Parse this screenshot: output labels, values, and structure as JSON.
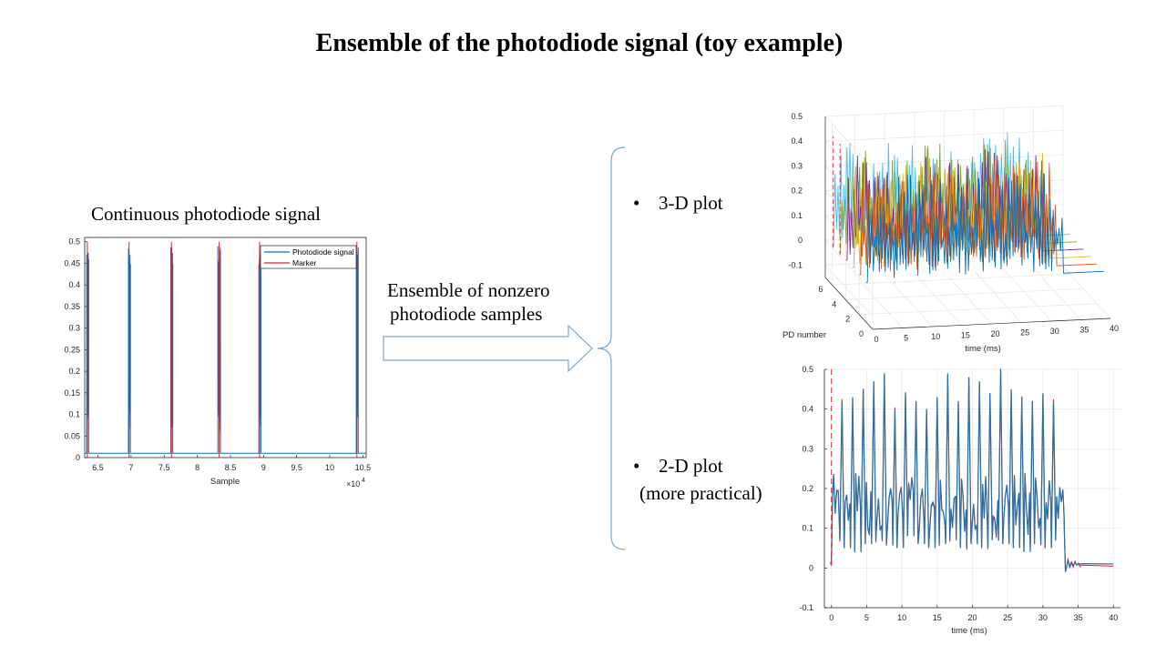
{
  "slide": {
    "title": "Ensemble of the photodiode signal (toy example)",
    "left_caption": "Continuous photodiode signal",
    "arrow_caption_line1": "Ensemble of nonzero",
    "arrow_caption_line2": "photodiode samples",
    "bullet_3d": "3-D plot",
    "bullet_2d_line1": "2-D plot",
    "bullet_2d_line2": "(more practical)",
    "bullet_symbol": "•",
    "colors": {
      "signal_blue": "#0072BD",
      "marker_red": "#E0232B",
      "arrow_outline": "#7BA7CF",
      "grid": "#E6E6E6"
    }
  },
  "chart_data": [
    {
      "type": "line",
      "name": "continuous-signal",
      "xlabel": "Sample",
      "x_exponent_label": "×10",
      "x_exponent": "4",
      "xlim": [
        6.3,
        10.55
      ],
      "ylim": [
        0,
        0.51
      ],
      "xticks": [
        "6.5",
        "7",
        "7.5",
        "8",
        "8.5",
        "9",
        "9.5",
        "10",
        "10.5"
      ],
      "xtick_values": [
        6.5,
        7,
        7.5,
        8,
        8.5,
        9,
        9.5,
        10,
        10.5
      ],
      "yticks": [
        "0",
        "0.05",
        "0.1",
        "0.15",
        "0.2",
        "0.25",
        "0.3",
        "0.35",
        "0.4",
        "0.45",
        "0.5"
      ],
      "ytick_values": [
        0,
        0.05,
        0.1,
        0.15,
        0.2,
        0.25,
        0.3,
        0.35,
        0.4,
        0.45,
        0.5
      ],
      "baseline": 0.01,
      "legend": [
        "Photodiode signal",
        "Marker"
      ],
      "legend_position": "top-right",
      "bursts": [
        {
          "start": 6.33,
          "end": 6.36,
          "peak": 0.495
        },
        {
          "start": 6.96,
          "end": 6.99,
          "peak": 0.495
        },
        {
          "start": 7.6,
          "end": 7.63,
          "peak": 0.49
        },
        {
          "start": 8.31,
          "end": 8.35,
          "peak": 0.49
        },
        {
          "start": 8.93,
          "end": 8.96,
          "peak": 0.485
        },
        {
          "start": 10.4,
          "end": 10.43,
          "peak": 0.495
        }
      ],
      "markers": [
        6.34,
        6.97,
        7.61,
        8.33,
        8.94,
        10.41
      ]
    },
    {
      "type": "line",
      "name": "ensemble-3d",
      "xlabel": "time (ms)",
      "ylabel": "PD number",
      "xlim": [
        0,
        40
      ],
      "ylim": [
        0,
        7
      ],
      "zlim": [
        -0.15,
        0.5
      ],
      "xticks": [
        "0",
        "5",
        "10",
        "15",
        "20",
        "25",
        "30",
        "35",
        "40"
      ],
      "xtick_values": [
        0,
        5,
        10,
        15,
        20,
        25,
        30,
        35,
        40
      ],
      "yticks": [
        "0",
        "2",
        "4",
        "6"
      ],
      "ytick_values": [
        0,
        2,
        4,
        6
      ],
      "zticks": [
        "-0.1",
        "0",
        "0.1",
        "0.2",
        "0.3",
        "0.4",
        "0.5"
      ],
      "ztick_values": [
        -0.1,
        0,
        0.1,
        0.2,
        0.3,
        0.4,
        0.5
      ],
      "series_colors": [
        "#0072BD",
        "#D95319",
        "#EDB120",
        "#7E2F8E",
        "#77AC30",
        "#4DBEEE"
      ],
      "pd_numbers": [
        1,
        2,
        3,
        4,
        5,
        6
      ],
      "signal_end_ms": 33
    },
    {
      "type": "line",
      "name": "ensemble-2d",
      "xlabel": "time (ms)",
      "xlim": [
        -1,
        41
      ],
      "ylim": [
        -0.1,
        0.5
      ],
      "xticks": [
        "0",
        "5",
        "10",
        "15",
        "20",
        "25",
        "30",
        "35",
        "40"
      ],
      "xtick_values": [
        0,
        5,
        10,
        15,
        20,
        25,
        30,
        35,
        40
      ],
      "yticks": [
        "-0.1",
        "0",
        "0.1",
        "0.2",
        "0.3",
        "0.4",
        "0.5"
      ],
      "ytick_values": [
        -0.1,
        0,
        0.1,
        0.2,
        0.3,
        0.4,
        0.5
      ],
      "marker_time_ms": 0,
      "signal_start_ms": 0,
      "signal_end_ms": 33,
      "tail_level": 0.01,
      "peak_times_ms": [
        1.5,
        3.0,
        4.5,
        6.0,
        7.5,
        9.0,
        10.5,
        12.0,
        13.5,
        15.0,
        16.5,
        18.0,
        19.5,
        21.0,
        22.5,
        24.0,
        25.5,
        27.0,
        28.5,
        30.0,
        31.5
      ],
      "peak_values": [
        0.42,
        0.43,
        0.45,
        0.47,
        0.49,
        0.4,
        0.44,
        0.42,
        0.4,
        0.43,
        0.49,
        0.42,
        0.48,
        0.47,
        0.44,
        0.5,
        0.45,
        0.43,
        0.42,
        0.44,
        0.42
      ],
      "trough_values": [
        0.07,
        0.05,
        0.04,
        0.06,
        0.07,
        0.06,
        0.05,
        0.08,
        0.06,
        0.05,
        0.06,
        0.07,
        0.05,
        0.06,
        0.05,
        0.07,
        0.06,
        0.05,
        0.04,
        0.06,
        0.05
      ],
      "grid": true
    }
  ]
}
